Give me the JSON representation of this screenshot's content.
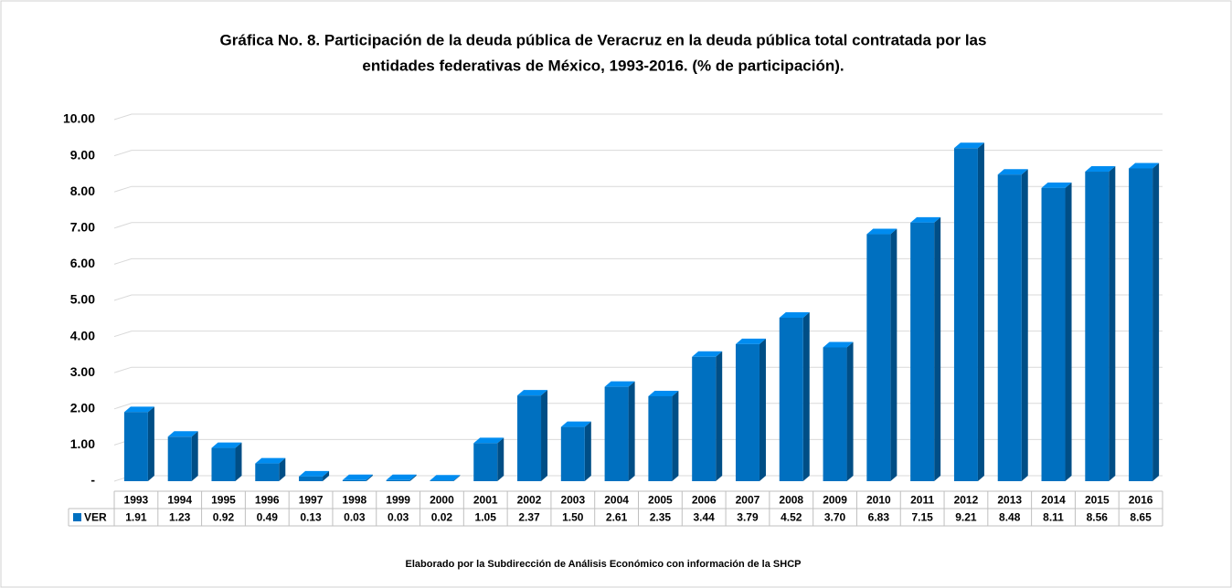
{
  "chart_data": {
    "type": "bar",
    "title": [
      "Gráfica No. 8. Participación de la deuda pública de Veracruz en la deuda pública total contratada por las",
      "entidades federativas de México, 1993-2016. (% de participación)."
    ],
    "categories": [
      "1993",
      "1994",
      "1995",
      "1996",
      "1997",
      "1998",
      "1999",
      "2000",
      "2001",
      "2002",
      "2003",
      "2004",
      "2005",
      "2006",
      "2007",
      "2008",
      "2009",
      "2010",
      "2011",
      "2012",
      "2013",
      "2014",
      "2015",
      "2016"
    ],
    "series": [
      {
        "name": "VER",
        "color": "#0070c0",
        "values": [
          1.91,
          1.23,
          0.92,
          0.49,
          0.13,
          0.03,
          0.03,
          0.02,
          1.05,
          2.37,
          1.5,
          2.61,
          2.35,
          3.44,
          3.79,
          4.52,
          3.7,
          6.83,
          7.15,
          9.21,
          8.48,
          8.11,
          8.56,
          8.65
        ],
        "value_labels": [
          "1.91",
          "1.23",
          "0.92",
          "0.49",
          "0.13",
          "0.03",
          "0.03",
          "0.02",
          "1.05",
          "2.37",
          "1.50",
          "2.61",
          "2.35",
          "3.44",
          "3.79",
          "4.52",
          "3.70",
          "6.83",
          "7.15",
          "9.21",
          "8.48",
          "8.11",
          "8.56",
          "8.65"
        ]
      }
    ],
    "ylim": [
      0,
      10
    ],
    "yticks": [
      {
        "value": 0,
        "label": "-"
      },
      {
        "value": 1,
        "label": "1.00"
      },
      {
        "value": 2,
        "label": "2.00"
      },
      {
        "value": 3,
        "label": "3.00"
      },
      {
        "value": 4,
        "label": "4.00"
      },
      {
        "value": 5,
        "label": "5.00"
      },
      {
        "value": 6,
        "label": "6.00"
      },
      {
        "value": 7,
        "label": "7.00"
      },
      {
        "value": 8,
        "label": "8.00"
      },
      {
        "value": 9,
        "label": "9.00"
      },
      {
        "value": 10,
        "label": "10.00"
      }
    ],
    "grid": true,
    "data_table": true,
    "note": "Elaborado por la Subdirección de Análisis Económico con información de la SHCP"
  }
}
